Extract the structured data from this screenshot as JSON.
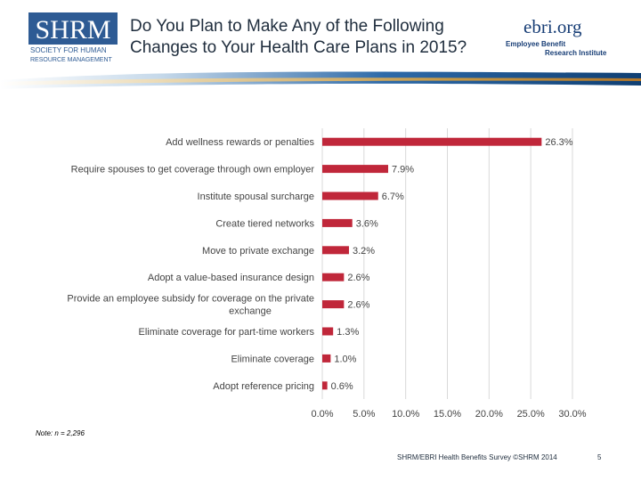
{
  "header": {
    "title_line1": "Do You Plan to Make Any of the Following",
    "title_line2": "Changes to Your Health Care Plans in 2015?",
    "shrm_logo_text": [
      "SHRM",
      "SOCIETY FOR HUMAN",
      "RESOURCE MANAGEMENT"
    ],
    "ebri_logo_text": "ebri.org",
    "ebri_sub_line1": "Employee Benefit",
    "ebri_sub_line2": "Research Institute"
  },
  "colors": {
    "bar": "#c0273a",
    "shrm_blue": "#2e5b94",
    "ebri_blue": "#183e76"
  },
  "chart_data": {
    "type": "bar",
    "orientation": "horizontal",
    "categories": [
      "Add wellness rewards or penalties",
      "Require spouses to get coverage through own employer",
      "Institute spousal surcharge",
      "Create tiered networks",
      "Move to private exchange",
      "Adopt a value-based insurance design",
      "Provide an employee subsidy for coverage on the private exchange",
      "Eliminate coverage for part-time workers",
      "Eliminate coverage",
      "Adopt reference pricing"
    ],
    "values": [
      26.3,
      7.9,
      6.7,
      3.6,
      3.2,
      2.6,
      2.6,
      1.3,
      1.0,
      0.6
    ],
    "value_labels": [
      "26.3%",
      "7.9%",
      "6.7%",
      "3.6%",
      "3.2%",
      "2.6%",
      "2.6%",
      "1.3%",
      "1.0%",
      "0.6%"
    ],
    "xlim": [
      0,
      30
    ],
    "x_ticks": [
      0,
      5,
      10,
      15,
      20,
      25,
      30
    ],
    "x_tick_labels": [
      "0.0%",
      "5.0%",
      "10.0%",
      "15.0%",
      "20.0%",
      "25.0%",
      "30.0%"
    ],
    "grid": true,
    "legend": "none"
  },
  "note": "Note: n = 2,296",
  "footer": "SHRM/EBRI Health Benefits Survey ©SHRM 2014",
  "page_number": "5"
}
